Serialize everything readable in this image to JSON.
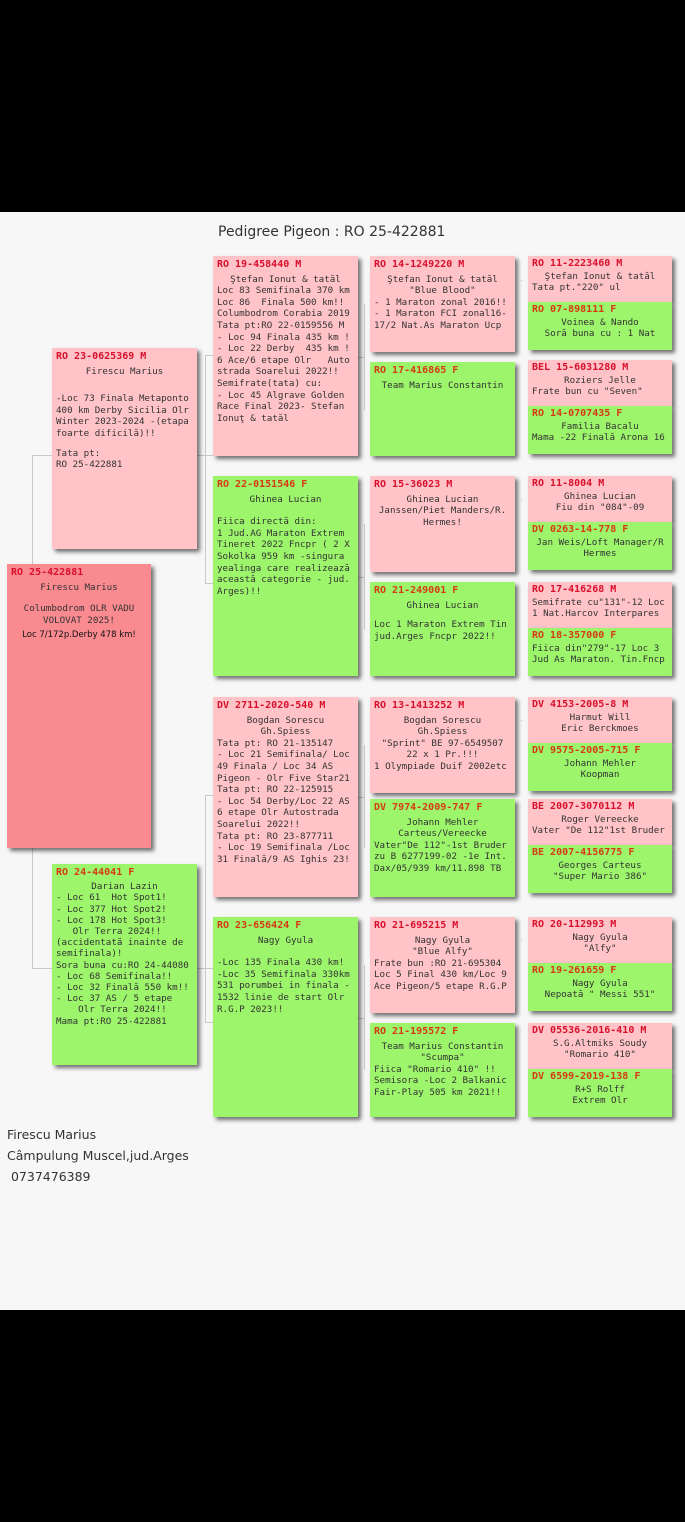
{
  "title": "Pedigree Pigeon : RO 25-422881",
  "subject": {
    "ring": "RO 25-422881",
    "breeder": [
      "Firescu Marius"
    ],
    "notes": [
      "Columbodrom OLR VADU",
      "VOLOVAT 2025!"
    ],
    "result": "Loc 7/172p.Derby 478 km!"
  },
  "gen1": [
    {
      "ring": "RO 23-0625369 M",
      "sex": "M",
      "breeder": [
        "Firescu Marius"
      ],
      "notes": [
        "",
        "-Loc 73 Finala Metaponto",
        "400 km Derby Sicilia Olr",
        "Winter 2023-2024 -(etapa",
        "foarte dificilă)!!",
        "",
        "Tata pt:",
        "RO 25-422881"
      ]
    },
    {
      "ring": "RO 24-44041 F",
      "sex": "F",
      "breeder": [
        "Darian Lazin"
      ],
      "notes": [
        "- Loc 61  Hot Spot1!",
        "- Loc 377 Hot Spot2!",
        "- Loc 178 Hot Spot3!",
        "   Olr Terra 2024!!",
        "(accidentată inainte de",
        "semifinala)!",
        "Sora buna cu:RO 24-44080",
        "- Loc 68 Semifinala!!",
        "- Loc 32 Finală 550 km!!",
        "- Loc 37 AS / 5 etape",
        "    Olr Terra 2024!!",
        "Mama pt:RO 25-422881"
      ]
    }
  ],
  "gen2": [
    {
      "ring": "RO 19-458440 M",
      "sex": "M",
      "breeder": [
        "Ştefan Ionut & tatăl"
      ],
      "notes": [
        "Loc 83 Semifinala 370 km",
        "Loc 86  Finala 500 km!!",
        "Columbodrom Corabia 2019",
        "Tata pt:RO 22-0159556 M",
        "- Loc 94 Finala 435 km !",
        "- Loc 22 Derby  435 km !",
        "6 Ace/6 etape Olr   Auto",
        "strada Soarelui 2022!!",
        "Semifrate(tata) cu:",
        "- Loc 45 Algrave Golden",
        "Race Final 2023- Stefan",
        "Ionuţ & tatăl"
      ]
    },
    {
      "ring": "RO 22-0151546 F",
      "sex": "F",
      "breeder": [
        "Ghinea Lucian"
      ],
      "notes": [
        "",
        "Fiica directă din:",
        "1 Jud.AG Maraton Extrem",
        "Tineret 2022 Fncpr ( 2 X",
        "Sokolka 959 km -singura",
        "yealinga care realizează",
        "această categorie - jud.",
        "Arges)!!"
      ]
    },
    {
      "ring": "DV 2711-2020-540 M",
      "sex": "M",
      "breeder": [
        "Bogdan Sorescu",
        "Gh.Spiess"
      ],
      "notes": [
        "Tata pt: RO 21-135147",
        "- Loc 21 Semifinala/ Loc",
        "49 Finala / Loc 34 AS",
        "Pigeon - Olr Five Star21",
        "Tata pt: RO 22-125915",
        "- Loc 54 Derby/Loc 22 AS",
        "6 etape Olr Autostrada",
        "Soarelui 2022!!",
        "Tata pt: RO 23-877711",
        "- Loc 19 Semifinala /Loc",
        "31 Finală/9 AS Ighis 23!"
      ]
    },
    {
      "ring": "RO 23-656424 F",
      "sex": "F",
      "breeder": [
        "Nagy Gyula"
      ],
      "notes": [
        "",
        "-Loc 135 Finala 430 km!",
        "-Loc 35 Semifinala 330km",
        "531 porumbei in finala -",
        "1532 linie de start Olr",
        "R.G.P 2023!!"
      ]
    }
  ],
  "gen3": [
    {
      "ring": "RO 14-1249220 M",
      "sex": "M",
      "breeder": [
        "Ştefan Ionut & tatăl",
        "\"Blue Blood\""
      ],
      "notes": [
        "- 1 Maraton zonal 2016!!",
        "- 1 Maraton FCI zonal16-",
        "17/2 Nat.As Maraton Ucp"
      ]
    },
    {
      "ring": "RO 17-416865 F",
      "sex": "F",
      "breeder": [
        "Team Marius Constantin"
      ],
      "notes": []
    },
    {
      "ring": "RO 15-36023 M",
      "sex": "M",
      "breeder": [
        "Ghinea Lucian",
        "Janssen/Piet Manders/R.",
        "Hermes!"
      ],
      "notes": []
    },
    {
      "ring": "RO 21-249001 F",
      "sex": "F",
      "breeder": [
        "Ghinea Lucian"
      ],
      "notes": [
        "",
        "Loc 1 Maraton Extrem Tin",
        "jud.Arges Fncpr 2022!!"
      ]
    },
    {
      "ring": "RO 13-1413252 M",
      "sex": "M",
      "breeder": [
        "Bogdan Sorescu",
        "Gh.Spiess",
        "\"Sprint\" BE 97-6549507",
        "22 x 1 Pr.!!!"
      ],
      "notes": [
        "1 Olympiade Duif 2002etc"
      ]
    },
    {
      "ring": "DV 7974-2009-747 F",
      "sex": "F",
      "breeder": [
        "Johann Mehler",
        "Carteus/Vereecke"
      ],
      "notes": [
        "Vater\"De 112\"-1st Bruder",
        "zu B 6277199-02 -1e Int.",
        "Dax/05/939 km/11.898 TB"
      ]
    },
    {
      "ring": "RO 21-695215 M",
      "sex": "M",
      "breeder": [
        "Nagy Gyula",
        "\"Blue Alfy\""
      ],
      "notes": [
        "Frate bun :RO 21-695304",
        "Loc 5 Final 430 km/Loc 9",
        "Ace Pigeon/5 etape R.G.P"
      ]
    },
    {
      "ring": "RO 21-195572 F",
      "sex": "F",
      "breeder": [
        "Team Marius Constantin",
        "\"Scumpa\""
      ],
      "notes": [
        "Fiica \"Romario 410\" !!",
        "Semisora -Loc 2 Balkanic",
        "Fair-Play 505 km 2021!!"
      ]
    }
  ],
  "gen4": [
    {
      "ring": "RO 11-2223460 M",
      "sex": "M",
      "breeder": [
        "Ştefan Ionut & tatăl"
      ],
      "notes": [
        "Tata pt.\"220\" ul"
      ]
    },
    {
      "ring": "RO 07-898111 F",
      "sex": "F",
      "breeder": [
        "Voinea & Nando",
        "Soră buna cu : 1 Nat"
      ],
      "notes": []
    },
    {
      "ring": "BEL 15-6031280 M",
      "sex": "M",
      "breeder": [
        "Roziers Jelle"
      ],
      "notes": [
        "Frate bun cu \"Seven\""
      ]
    },
    {
      "ring": "RO 14-0707435 F",
      "sex": "F",
      "breeder": [
        "Familia Bacalu"
      ],
      "notes": [
        "Mama -22 Finală Arona 16"
      ]
    },
    {
      "ring": "RO 11-8004 M",
      "sex": "M",
      "breeder": [
        "Ghinea Lucian",
        "Fiu din \"084\"-09"
      ],
      "notes": []
    },
    {
      "ring": "DV 0263-14-778 F",
      "sex": "F",
      "breeder": [
        "Jan Weis/Loft Manager/R",
        "Hermes"
      ],
      "notes": []
    },
    {
      "ring": "RO 17-416268 M",
      "sex": "M",
      "breeder": [],
      "notes": [
        "Semifrate cu\"131\"-12 Loc",
        "1 Nat.Harcov Interpares"
      ]
    },
    {
      "ring": "RO 18-357000 F",
      "sex": "F",
      "breeder": [],
      "notes": [
        "Fiica din\"279\"-17 Loc 3",
        "Jud As Maraton. Tin.Fncp"
      ]
    },
    {
      "ring": "DV 4153-2005-8 M",
      "sex": "M",
      "breeder": [
        "Harmut Will",
        "Eric Berckmoes"
      ],
      "notes": []
    },
    {
      "ring": "DV 9575-2005-715 F",
      "sex": "F",
      "breeder": [
        "Johann Mehler",
        "Koopman"
      ],
      "notes": []
    },
    {
      "ring": "BE 2007-3070112 M",
      "sex": "M",
      "breeder": [
        "Roger Vereecke"
      ],
      "notes": [
        "Vater \"De 112\"1st Bruder"
      ]
    },
    {
      "ring": "BE 2007-4156775 F",
      "sex": "F",
      "breeder": [
        "Georges Carteus",
        "\"Super Mario 386\""
      ],
      "notes": []
    },
    {
      "ring": "RO 20-112993 M",
      "sex": "M",
      "breeder": [
        "Nagy Gyula",
        "\"Alfy\""
      ],
      "notes": []
    },
    {
      "ring": "RO 19-261659 F",
      "sex": "F",
      "breeder": [
        "Nagy Gyula",
        "Nepoată \" Messi 551\""
      ],
      "notes": []
    },
    {
      "ring": "DV 05536-2016-410 M",
      "sex": "M",
      "breeder": [
        "S.G.Altmiks Soudy",
        "\"Romario 410\""
      ],
      "notes": []
    },
    {
      "ring": "DV 6599-2019-138 F",
      "sex": "F",
      "breeder": [
        "R+S Rolff",
        "Extrem Olr"
      ],
      "notes": []
    }
  ],
  "footer": {
    "name": "Firescu Marius",
    "address": "Câmpulung Muscel,jud.Arges",
    "phone": " 0737476389"
  },
  "colors": {
    "male_bg": "#ffc3c8",
    "female_bg": "#9cf56b",
    "subject_bg": "#f98a90",
    "male_ring": "#d8102c",
    "female_ring": "#d63a14"
  }
}
